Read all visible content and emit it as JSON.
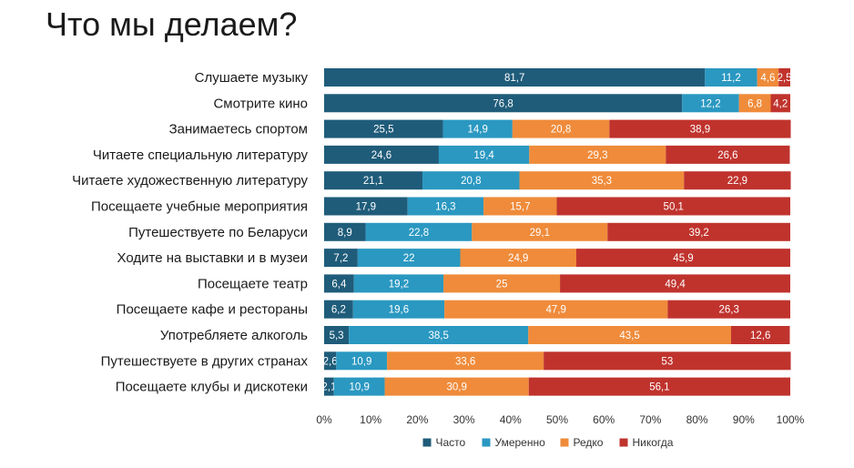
{
  "page": {
    "title": "Что мы делаем?"
  },
  "chart_data": {
    "type": "bar",
    "orientation": "horizontal",
    "stacked": "percent",
    "title": "",
    "categories": [
      "Слушаете музыку",
      "Смотрите кино",
      "Занимаетесь спортом",
      "Читаете специальную литературу",
      "Читаете художественную литературу",
      "Посещаете учебные мероприятия",
      "Путешествуете по Беларуси",
      "Ходите на выставки и в музеи",
      "Посещаете театр",
      "Посещаете кафе и рестораны",
      "Употребляете алкоголь",
      "Путешествуете в других странах",
      "Посещаете клубы и дискотеки"
    ],
    "series": [
      {
        "name": "Часто",
        "color": "#1f5c7a",
        "values": [
          81.7,
          76.8,
          25.5,
          24.6,
          21.1,
          17.9,
          8.9,
          7.2,
          6.4,
          6.2,
          5.3,
          2.6,
          2.1
        ]
      },
      {
        "name": "Умеренно",
        "color": "#2a98c1",
        "values": [
          11.2,
          12.2,
          14.9,
          19.4,
          20.8,
          16.3,
          22.8,
          22,
          19.2,
          19.6,
          38.5,
          10.9,
          10.9
        ]
      },
      {
        "name": "Редко",
        "color": "#ef8b3a",
        "values": [
          4.6,
          6.8,
          20.8,
          29.3,
          35.3,
          15.7,
          29.1,
          24.9,
          25,
          47.9,
          43.5,
          33.6,
          30.9
        ]
      },
      {
        "name": "Никогда",
        "color": "#c0332d",
        "values": [
          2.5,
          4.2,
          38.9,
          26.6,
          22.9,
          50.1,
          39.2,
          45.9,
          49.4,
          26.3,
          12.6,
          53,
          56.1
        ]
      }
    ],
    "x_ticks": [
      "0%",
      "10%",
      "20%",
      "30%",
      "40%",
      "50%",
      "60%",
      "70%",
      "80%",
      "90%",
      "100%"
    ],
    "xlim": [
      0,
      100
    ],
    "legend": "bottom",
    "grid": false
  }
}
